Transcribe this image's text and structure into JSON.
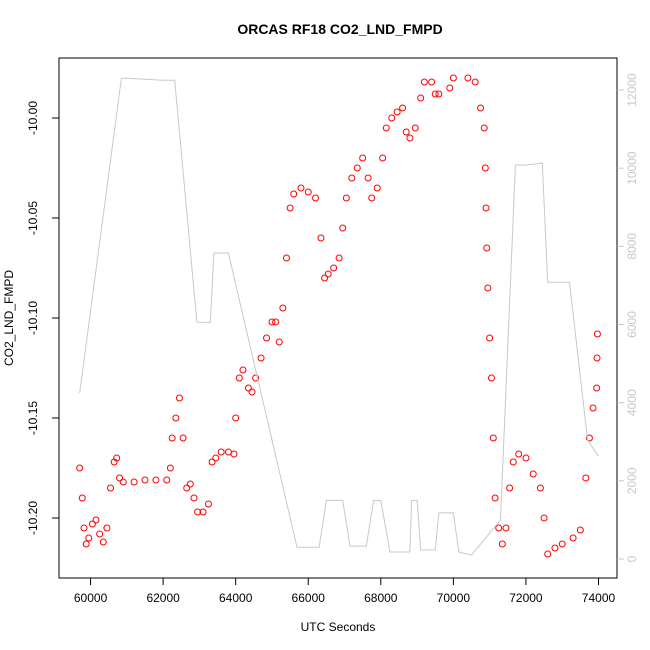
{
  "chart_data": {
    "type": "scatter",
    "title": "ORCAS RF18 CO2_LND_FMPD",
    "xlabel": "UTC Seconds",
    "ylabel": "CO2_LND_FMPD",
    "xlim": [
      59130,
      74510
    ],
    "ylim": [
      -10.23,
      -9.97
    ],
    "y2lim": [
      -486,
      12818
    ],
    "xticks": [
      60000,
      62000,
      64000,
      66000,
      68000,
      70000,
      72000,
      74000
    ],
    "yticks": [
      {
        "value": -10.2,
        "label": "-10.20"
      },
      {
        "value": -10.15,
        "label": "-10.15"
      },
      {
        "value": -10.1,
        "label": "-10.10"
      },
      {
        "value": -10.05,
        "label": "-10.05"
      },
      {
        "value": -10.0,
        "label": "-10.00"
      }
    ],
    "y2ticks": [
      0,
      2000,
      4000,
      6000,
      8000,
      10000,
      12000
    ],
    "series": [
      {
        "color": "#ff0000",
        "mode": "points",
        "axis": "y",
        "x": [
          59700,
          59770,
          59820,
          59880,
          59950,
          60050,
          60150,
          60250,
          60350,
          60450,
          60550,
          60650,
          60720,
          60800,
          60900,
          61200,
          61500,
          61800,
          62100,
          62200,
          62250,
          62350,
          62450,
          62550,
          62650,
          62750,
          62850,
          62950,
          63100,
          63250,
          63350,
          63450,
          63600,
          63800,
          63950,
          64000,
          64100,
          64200,
          64350,
          64450,
          64550,
          64700,
          64850,
          65000,
          65100,
          65200,
          65300,
          65400,
          65500,
          65600,
          65800,
          66000,
          66200,
          66350,
          66450,
          66550,
          66700,
          66850,
          66950,
          67050,
          67200,
          67350,
          67500,
          67650,
          67750,
          67900,
          68050,
          68150,
          68300,
          68450,
          68600,
          68700,
          68800,
          68950,
          69100,
          69200,
          69400,
          69500,
          69600,
          69900,
          70000,
          70400,
          70600,
          70750,
          70850,
          70880,
          70900,
          70920,
          70950,
          71000,
          71050,
          71100,
          71150,
          71250,
          71350,
          71450,
          71550,
          71650,
          71800,
          72000,
          72200,
          72400,
          72500,
          72600,
          72800,
          73000,
          73300,
          73500,
          73650,
          73750,
          73850,
          73950,
          73960,
          73970
        ],
        "values": [
          -10.175,
          -10.19,
          -10.205,
          -10.213,
          -10.21,
          -10.203,
          -10.201,
          -10.208,
          -10.212,
          -10.205,
          -10.185,
          -10.172,
          -10.17,
          -10.18,
          -10.182,
          -10.182,
          -10.181,
          -10.181,
          -10.181,
          -10.175,
          -10.16,
          -10.15,
          -10.14,
          -10.16,
          -10.185,
          -10.183,
          -10.19,
          -10.197,
          -10.197,
          -10.193,
          -10.172,
          -10.17,
          -10.167,
          -10.167,
          -10.168,
          -10.15,
          -10.13,
          -10.126,
          -10.135,
          -10.137,
          -10.13,
          -10.12,
          -10.11,
          -10.102,
          -10.102,
          -10.112,
          -10.095,
          -10.07,
          -10.045,
          -10.038,
          -10.035,
          -10.037,
          -10.04,
          -10.06,
          -10.08,
          -10.078,
          -10.075,
          -10.07,
          -10.055,
          -10.04,
          -10.03,
          -10.025,
          -10.02,
          -10.03,
          -10.04,
          -10.035,
          -10.02,
          -10.005,
          -10.0,
          -9.997,
          -9.995,
          -10.007,
          -10.01,
          -10.005,
          -9.99,
          -9.982,
          -9.982,
          -9.988,
          -9.988,
          -9.985,
          -9.98,
          -9.98,
          -9.982,
          -9.995,
          -10.005,
          -10.025,
          -10.045,
          -10.065,
          -10.085,
          -10.11,
          -10.13,
          -10.16,
          -10.19,
          -10.205,
          -10.213,
          -10.205,
          -10.185,
          -10.172,
          -10.168,
          -10.17,
          -10.178,
          -10.185,
          -10.2,
          -10.218,
          -10.215,
          -10.213,
          -10.21,
          -10.206,
          -10.18,
          -10.16,
          -10.145,
          -10.135,
          -10.12,
          -10.108
        ]
      },
      {
        "color": "#c8c8c8",
        "mode": "line",
        "axis": "y2",
        "x": [
          59700,
          60850,
          60950,
          62000,
          62320,
          62930,
          63300,
          63400,
          63800,
          65690,
          66300,
          66500,
          66950,
          67150,
          67600,
          67800,
          68000,
          68250,
          68800,
          68850,
          69000,
          69100,
          69500,
          69600,
          70000,
          70150,
          70500,
          71300,
          71710,
          72000,
          72450,
          72600,
          73200,
          73700,
          74000
        ],
        "values": [
          4250,
          12300,
          12300,
          12250,
          12250,
          6060,
          6050,
          7830,
          7830,
          300,
          300,
          1500,
          1500,
          330,
          330,
          1500,
          1500,
          180,
          180,
          1500,
          1500,
          230,
          230,
          1180,
          1180,
          180,
          100,
          1000,
          10080,
          10080,
          10130,
          7080,
          7080,
          3040,
          2630
        ]
      }
    ]
  }
}
